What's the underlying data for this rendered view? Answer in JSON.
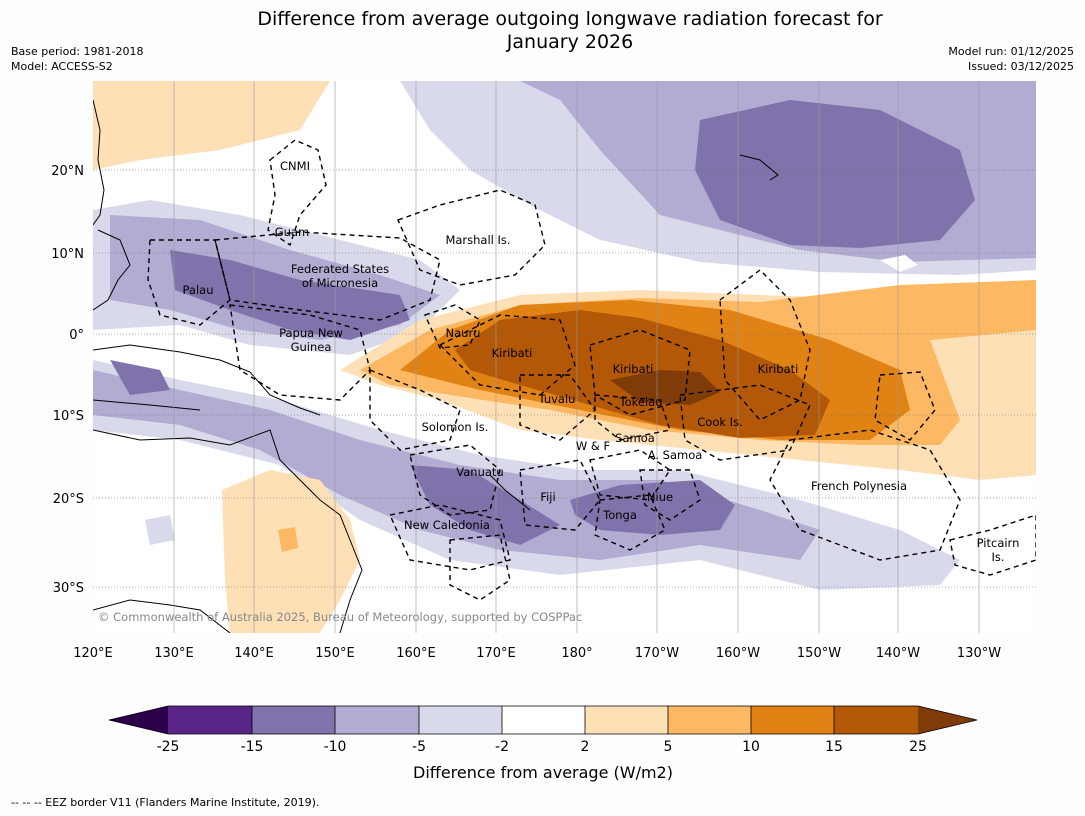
{
  "header": {
    "title_line1": "Difference from average outgoing longwave radiation forecast for",
    "title_line2": "January 2026",
    "base_period": "Base period: 1981-2018",
    "model": "Model: ACCESS-S2",
    "model_run": "Model run: 01/12/2025",
    "issued": "Issued: 03/12/2025"
  },
  "map": {
    "lat_labels": [
      "20°N",
      "10°N",
      "0°",
      "10°S",
      "20°S",
      "30°S"
    ],
    "lon_labels": [
      "120°E",
      "130°E",
      "140°E",
      "150°E",
      "160°E",
      "170°E",
      "180°",
      "170°W",
      "160°W",
      "150°W",
      "140°W",
      "130°W"
    ],
    "region_labels": {
      "cnmi": "CNMI",
      "guam": "Guam",
      "marshall": "Marshall Is.",
      "fsm_1": "Federated States",
      "fsm_2": "of Micronesia",
      "palau": "Palau",
      "png_1": "Papua New",
      "png_2": "Guinea",
      "nauru": "Nauru",
      "kiribati_w": "Kiribati",
      "kiribati_c": "Kiribati",
      "kiribati_e": "Kiribati",
      "tuvalu": "Tuvalu",
      "tokelau": "Tokelau",
      "cook": "Cook Is.",
      "solomon": "Solomon Is.",
      "wf": "W & F",
      "samoa": "Samoa",
      "asamoa": "A. Samoa",
      "vanuatu": "Vanuatu",
      "fiji": "Fiji",
      "niue": "Niue",
      "tonga": "Tonga",
      "frpoly": "French Polynesia",
      "newcal": "New Caledonia",
      "pitcairn_1": "Pitcairn",
      "pitcairn_2": "Is."
    },
    "copyright": "© Commonwealth of Australia 2025, Bureau of Meteorology, supported by COSPPac"
  },
  "colorbar": {
    "title": "Difference from average (W/m2)",
    "ticks": [
      "-25",
      "-15",
      "-10",
      "-5",
      "-2",
      "2",
      "5",
      "10",
      "15",
      "25"
    ],
    "colors": {
      "lt_neg25": "#2d004b",
      "neg25_15": "#5a2586",
      "neg15_10": "#8073ac",
      "neg10_5": "#b2abd2",
      "neg5_2": "#d8daeb",
      "neg2_2": "#ffffff",
      "p2_5": "#fee0b6",
      "p5_10": "#fdb863",
      "p10_15": "#e08214",
      "p15_25": "#b35806",
      "gt_25": "#7f3b08"
    }
  },
  "footer": {
    "eez_note": "--  --  -- EEZ border V11 (Flanders Marine Institute, 2019)."
  }
}
